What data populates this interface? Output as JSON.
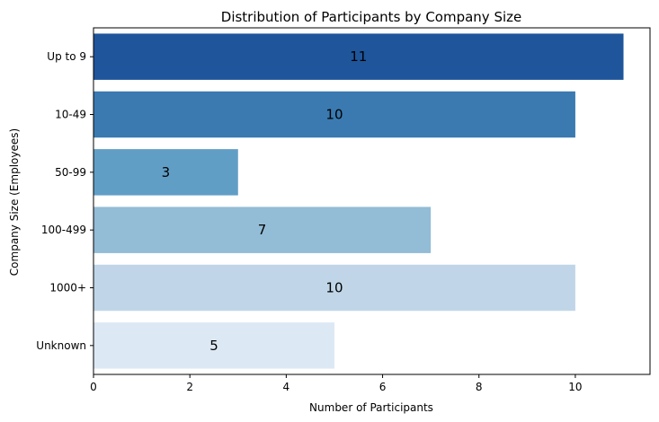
{
  "chart_data": {
    "type": "bar",
    "orientation": "horizontal",
    "title": "Distribution of Participants by Company Size",
    "xlabel": "Number of Participants",
    "ylabel": "Company Size (Employees)",
    "categories": [
      "Up to 9",
      "10-49",
      "50-99",
      "100-499",
      "1000+",
      "Unknown"
    ],
    "values": [
      11,
      10,
      3,
      7,
      10,
      5
    ],
    "colors": [
      "#1f559b",
      "#3a7ab0",
      "#619ec6",
      "#93bcd6",
      "#c0d6e8",
      "#dde8f5"
    ],
    "xlim": [
      0,
      11.55
    ],
    "xticks": [
      0,
      2,
      4,
      6,
      8,
      10
    ],
    "grid": false,
    "legend": "none"
  }
}
